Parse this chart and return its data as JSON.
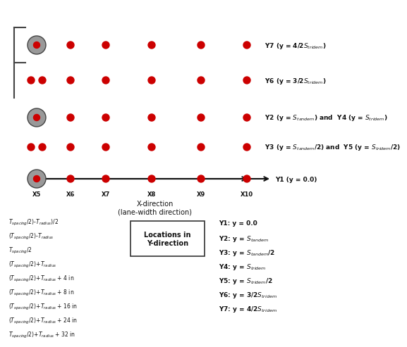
{
  "dot_color": "#cc0000",
  "wheel_color": "#999999",
  "wheel_outline": "#444444",
  "text_color": "#111111",
  "x_labels": [
    "X5",
    "X6",
    "X7",
    "X8",
    "X9",
    "X10"
  ],
  "y_row_labels": {
    "Y7": "Y7 (y = 4/2$S_{tridem}$)",
    "Y6": "Y6 (y = 3/2$S_{tridem}$)",
    "Y24": "Y2 (y = $S_{tandem}$) and  Y4 (y = $S_{tridem}$)",
    "Y35": "Y3 (y = $S_{tandem}$/2) and  Y5 (y = $S_{tridem}$/2)",
    "Y1": "Y1 (y = 0.0)"
  },
  "legend_lines": [
    "Y1: y = 0.0",
    "Y2: y = $S_{tandem}$",
    "Y3: y = $S_{tandem}$/2",
    "Y4: y = $S_{tridem}$",
    "Y5: y = $S_{tridem}$/2",
    "Y6: y = 3/2$S_{tridem}$",
    "Y7: y = 4/2$S_{tridem}$"
  ],
  "left_x_lines": [
    [
      "spacing",
      "/2)-",
      "radius",
      ")/2"
    ],
    [
      "spacing",
      "/2)-",
      "radius",
      ""
    ],
    [
      "spacing",
      "/2"
    ],
    [
      "spacing",
      "/2)+",
      "radius",
      ""
    ],
    [
      "spacing",
      "/2)+",
      "radius",
      " + 4 in"
    ],
    [
      "spacing",
      "/2)+",
      "radius",
      " + 8 in"
    ],
    [
      "spacing",
      "/2)+",
      "radius",
      " + 16 in"
    ],
    [
      "spacing",
      "/2)+",
      "radius",
      " + 24 in"
    ],
    [
      "spacing",
      "/2)+",
      "radius",
      " + 32 in"
    ]
  ]
}
